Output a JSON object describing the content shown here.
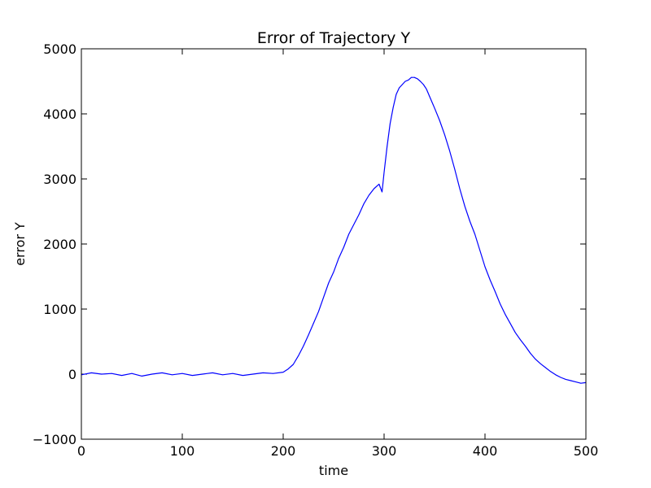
{
  "chart_data": {
    "type": "line",
    "title": "Error of Trajectory Y",
    "xlabel": "time",
    "ylabel": "error Y",
    "xlim": [
      0,
      500
    ],
    "ylim": [
      -1000,
      5000
    ],
    "xticks": [
      0,
      100,
      200,
      300,
      400,
      500
    ],
    "yticks": [
      -1000,
      0,
      1000,
      2000,
      3000,
      4000,
      5000
    ],
    "xtick_labels": [
      "0",
      "100",
      "200",
      "300",
      "400",
      "500"
    ],
    "ytick_labels": [
      "−1000",
      "0",
      "1000",
      "2000",
      "3000",
      "4000",
      "5000"
    ],
    "grid": false,
    "legend": "none",
    "series": [
      {
        "color": "#0000ff",
        "x": [
          0,
          10,
          20,
          30,
          40,
          50,
          60,
          70,
          80,
          90,
          100,
          110,
          120,
          130,
          140,
          150,
          160,
          170,
          180,
          190,
          200,
          205,
          210,
          215,
          220,
          225,
          230,
          235,
          240,
          245,
          250,
          255,
          260,
          265,
          270,
          275,
          280,
          285,
          290,
          295,
          298,
          300,
          303,
          306,
          309,
          312,
          315,
          318,
          321,
          324,
          327,
          330,
          333,
          336,
          339,
          342,
          345,
          350,
          355,
          360,
          365,
          370,
          375,
          380,
          385,
          390,
          395,
          400,
          405,
          410,
          415,
          420,
          425,
          430,
          435,
          440,
          445,
          450,
          455,
          460,
          465,
          470,
          475,
          480,
          485,
          490,
          495,
          500
        ],
        "values": [
          -10,
          20,
          0,
          10,
          -20,
          10,
          -30,
          0,
          20,
          -10,
          10,
          -20,
          0,
          20,
          -10,
          10,
          -20,
          0,
          20,
          10,
          30,
          80,
          150,
          280,
          430,
          600,
          780,
          960,
          1180,
          1400,
          1570,
          1780,
          1950,
          2150,
          2300,
          2450,
          2620,
          2750,
          2850,
          2920,
          2800,
          3100,
          3500,
          3850,
          4100,
          4300,
          4400,
          4450,
          4500,
          4520,
          4560,
          4560,
          4540,
          4500,
          4450,
          4380,
          4270,
          4090,
          3900,
          3680,
          3430,
          3150,
          2850,
          2580,
          2350,
          2150,
          1900,
          1650,
          1450,
          1270,
          1080,
          920,
          780,
          640,
          530,
          430,
          320,
          230,
          160,
          100,
          40,
          -10,
          -50,
          -80,
          -100,
          -120,
          -140,
          -130
        ]
      }
    ]
  }
}
